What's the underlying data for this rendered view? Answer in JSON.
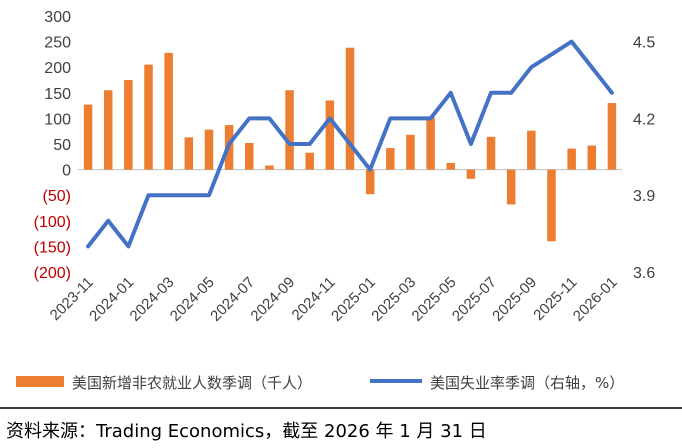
{
  "chart_data": {
    "type": "bar+line",
    "categories": [
      "2023-11",
      "2023-12",
      "2024-01",
      "2024-02",
      "2024-03",
      "2024-04",
      "2024-05",
      "2024-06",
      "2024-07",
      "2024-08",
      "2024-09",
      "2024-10",
      "2024-11",
      "2024-12",
      "2025-01",
      "2025-02",
      "2025-03",
      "2025-04",
      "2025-05",
      "2025-06",
      "2025-07",
      "2025-08",
      "2025-09",
      "2025-10",
      "2025-11",
      "2025-12",
      "2026-01"
    ],
    "x_tick_labels": [
      "2023-11",
      "2024-01",
      "2024-03",
      "2024-05",
      "2024-07",
      "2024-09",
      "2024-11",
      "2025-01",
      "2025-03",
      "2025-05",
      "2025-07",
      "2025-09",
      "2025-11",
      "2026-01"
    ],
    "series": [
      {
        "name": "美国新增非农就业人数季调（千人）",
        "type": "bar",
        "axis": "left",
        "color": "#ed7d31",
        "values": [
          127,
          155,
          175,
          205,
          228,
          63,
          78,
          87,
          52,
          8,
          155,
          33,
          135,
          238,
          -48,
          42,
          68,
          102,
          13,
          -18,
          64,
          -68,
          76,
          -140,
          41,
          47,
          130
        ]
      },
      {
        "name": "美国失业率季调（右轴，%）",
        "type": "line",
        "axis": "right",
        "color": "#4472c4",
        "values": [
          3.7,
          3.8,
          3.7,
          3.9,
          3.9,
          3.9,
          3.9,
          4.1,
          4.2,
          4.2,
          4.1,
          4.1,
          4.2,
          4.1,
          4.0,
          4.2,
          4.2,
          4.2,
          4.3,
          4.1,
          4.3,
          4.3,
          4.4,
          4.45,
          4.5,
          4.4,
          4.3
        ]
      }
    ],
    "y_left": {
      "ticks": [
        "300",
        "250",
        "200",
        "150",
        "100",
        "50",
        "0",
        "(50)",
        "(100)",
        "(150)",
        "(200)"
      ],
      "min": -200,
      "max": 300,
      "negative_color": "#c00000"
    },
    "y_right": {
      "ticks": [
        "4.5",
        "4.2",
        "3.9",
        "3.6"
      ],
      "min": 3.6,
      "max": 4.6
    },
    "legend_position": "bottom"
  },
  "source_text": "资料来源：Trading Economics，截至 2026 年 1 月 31 日"
}
